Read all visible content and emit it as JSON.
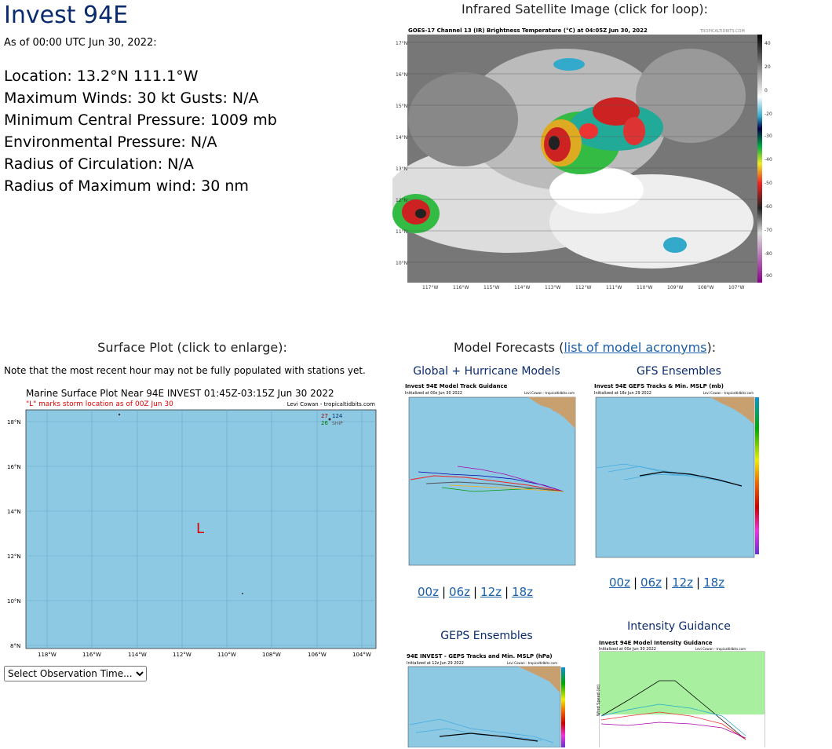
{
  "storm": {
    "name": "Invest 94E",
    "as_of": "As of 00:00 UTC Jun 30, 2022:",
    "location": "Location: 13.2°N 111.1°W",
    "winds": "Maximum Winds: 30 kt  Gusts: N/A",
    "pressure": "Minimum Central Pressure: 1009 mb",
    "env_pressure": "Environmental Pressure: N/A",
    "radius_circ": "Radius of Circulation: N/A",
    "radius_max": "Radius of Maximum wind: 30 nm"
  },
  "satellite": {
    "caption": "Infrared Satellite Image (click for loop):",
    "header": "GOES-17 Channel 13 (IR) Brightness Temperature (°C) at 04:05Z Jun 30, 2022",
    "credit": "TROPICALTIDBITS.COM",
    "lat_labels": [
      "17°N",
      "16°N",
      "15°N",
      "14°N",
      "13°N",
      "12°N",
      "11°N",
      "10°N"
    ],
    "lon_labels": [
      "117°W",
      "116°W",
      "115°W",
      "114°W",
      "113°W",
      "112°W",
      "111°W",
      "110°W",
      "109°W",
      "108°W",
      "107°W"
    ],
    "scale_labels": [
      "40",
      "20",
      "0",
      "-20",
      "-30",
      "-40",
      "-50",
      "-60",
      "-70",
      "-80",
      "-90"
    ]
  },
  "surface": {
    "caption": "Surface Plot (click to enlarge):",
    "note": "Note that the most recent hour may not be fully populated with stations yet.",
    "title": "Marine Surface Plot Near 94E INVEST 01:45Z-03:15Z Jun 30 2022",
    "subtitle": "\"L\" marks storm location as of 00Z Jun 30",
    "credit": "Levi Cowan - tropicaltidbits.com",
    "marker": "L",
    "station_a": "27",
    "station_b": "124",
    "station_c": "26",
    "station_d": "SHIP",
    "lat_labels": [
      "18°N",
      "16°N",
      "14°N",
      "12°N",
      "10°N",
      "8°N"
    ],
    "lon_labels": [
      "118°W",
      "116°W",
      "114°W",
      "112°W",
      "110°W",
      "108°W",
      "106°W",
      "104°W"
    ],
    "select_label": "Select Observation Time..."
  },
  "models": {
    "caption_prefix": "Model Forecasts (",
    "link": "list of model acronyms",
    "caption_suffix": "):",
    "global_title": "Global + Hurricane Models",
    "global_header": "Invest 94E Model Track Guidance",
    "global_sub": "Initialized at 00z Jun 30 2022",
    "global_credit": "Levi Cowan - tropicaltidbits.com",
    "gfs_title": "GFS Ensembles",
    "gfs_header": "Invest 94E GEFS Tracks & Min. MSLP (mb)",
    "gfs_sub": "Initialized at 18z Jun 29 2022",
    "gfs_credit": "Levi Cowan - tropicaltidbits.com",
    "geps_title": "GEPS Ensembles",
    "geps_header": "94E INVEST - GEPS Tracks and Min. MSLP (hPa)",
    "geps_sub": "Initialized at 12z Jun 29 2022",
    "geps_credit": "Levi Cowan - tropicaltidbits.com",
    "intensity_title": "Intensity Guidance",
    "intensity_header": "Invest 94E Model Intensity Guidance",
    "intensity_sub": "Initialized at 00z Jun 30 2022",
    "intensity_credit": "Levi Cowan - tropicaltidbits.com",
    "intensity_ylabel": "Wind Speed (kt)",
    "global_times": [
      "00z",
      "06z",
      "12z",
      "18z"
    ],
    "gfs_times": [
      "00z",
      "06z",
      "12z",
      "18z"
    ],
    "sep": "|"
  },
  "colors": {
    "title": "#0a2a6e",
    "link": "#1a5fa8",
    "ocean": "#8ec9e4",
    "land": "#c8a070"
  }
}
